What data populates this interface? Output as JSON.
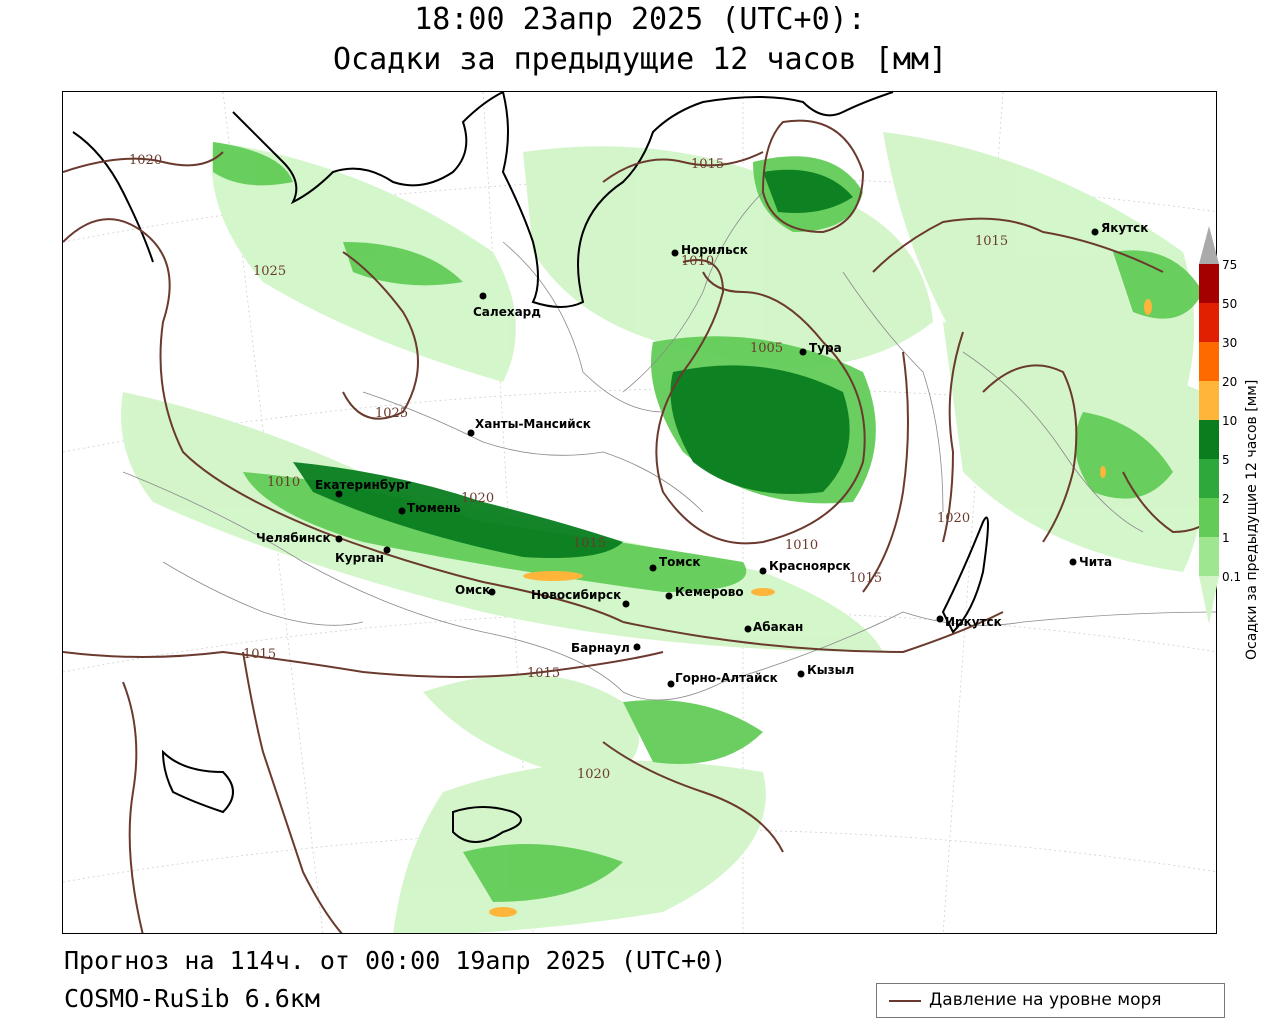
{
  "title": {
    "line1": "18:00 23апр 2025 (UTC+0):",
    "line2": "Осадки за предыдущие 12 часов [мм]"
  },
  "footer": {
    "forecast": "Прогноз на 114ч. от 00:00 19апр 2025 (UTC+0)",
    "model": "COSMO-RuSib 6.6км"
  },
  "legend": {
    "pressure_label": "Давление на уровне моря",
    "pressure_color": "#6b3a2e"
  },
  "colorbar": {
    "title": "Осадки за предыдущие 12 часов [мм]",
    "ticks": [
      "75",
      "50",
      "30",
      "20",
      "10",
      "5",
      "2",
      "1",
      "0.1"
    ],
    "colors": [
      "#aaaaaa",
      "#a50000",
      "#e02000",
      "#ff6a00",
      "#ffb43a",
      "#0a7d1f",
      "#2fa83b",
      "#62cc57",
      "#9ee68f",
      "#d2f5c8"
    ]
  },
  "cities": [
    {
      "name": "Салехард"
    },
    {
      "name": "Ханты-Мансийск"
    },
    {
      "name": "Екатеринбург"
    },
    {
      "name": "Тюмень"
    },
    {
      "name": "Челябинск"
    },
    {
      "name": "Курган"
    },
    {
      "name": "Омск"
    },
    {
      "name": "Новосибирск"
    },
    {
      "name": "Томск"
    },
    {
      "name": "Кемерово"
    },
    {
      "name": "Барнаул"
    },
    {
      "name": "Красноярск"
    },
    {
      "name": "Абакан"
    },
    {
      "name": "Горно-Алтайск"
    },
    {
      "name": "Кызыл"
    },
    {
      "name": "Иркутск"
    },
    {
      "name": "Чита"
    },
    {
      "name": "Якутск"
    },
    {
      "name": "Тура"
    },
    {
      "name": "Норильск"
    }
  ],
  "isobar_labels": [
    "1020",
    "1025",
    "1015",
    "1010",
    "1005",
    "1025",
    "1015",
    "1020",
    "1015",
    "1010",
    "1015",
    "1015",
    "1020",
    "1020",
    "1015",
    "1010"
  ]
}
